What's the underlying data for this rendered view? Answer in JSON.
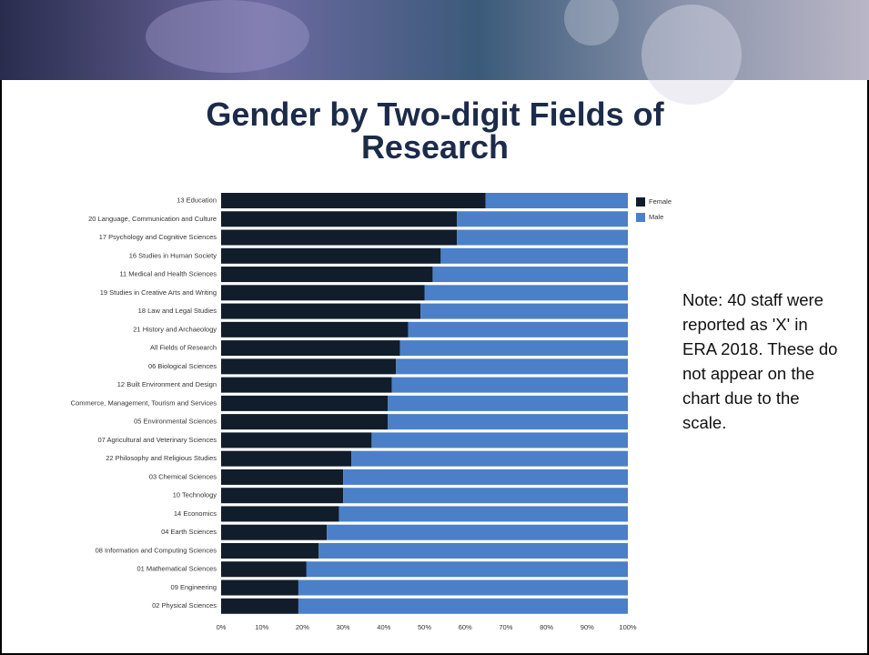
{
  "chart_data": {
    "type": "bar",
    "orientation": "horizontal",
    "stacked": true,
    "title": "Gender by Two-digit Fields of Research",
    "annotation": "Note: 40 staff were reported as 'X' in ERA 2018. These do not appear on the chart due to the scale.",
    "categories": [
      "13 Education",
      "20 Language, Communication and Culture",
      "17 Psychology and Cognitive Sciences",
      "16 Studies in Human Society",
      "11 Medical and Health Sciences",
      "19 Studies in Creative Arts and Writing",
      "18 Law and Legal Studies",
      "21 History and Archaeology",
      "All Fields of Research",
      "06 Biological Sciences",
      "12 Built Environment and Design",
      "Commerce, Management, Tourism and Services",
      "05 Environmental Sciences",
      "07 Agricultural and Veterinary Sciences",
      "22 Philosophy and Religious Studies",
      "03 Chemical Sciences",
      "10 Technology",
      "14 Economics",
      "04 Earth Sciences",
      "08 Information and Computing Sciences",
      "01 Mathematical Sciences",
      "09 Engineering",
      "02 Physical Sciences"
    ],
    "series": [
      {
        "name": "Female",
        "color": "#111d2b",
        "values": [
          65,
          58,
          58,
          54,
          52,
          50,
          49,
          46,
          44,
          43,
          42,
          41,
          41,
          37,
          32,
          30,
          30,
          29,
          26,
          24,
          21,
          19,
          19
        ]
      },
      {
        "name": "Male",
        "color": "#4b80c8",
        "values": [
          35,
          42,
          42,
          46,
          48,
          50,
          51,
          54,
          56,
          57,
          58,
          59,
          59,
          63,
          68,
          70,
          70,
          71,
          74,
          76,
          79,
          81,
          81
        ]
      }
    ],
    "xlim": [
      0,
      100
    ],
    "xticks": [
      {
        "value": 0,
        "label": "0%"
      },
      {
        "value": 10,
        "label": "10%"
      },
      {
        "value": 20,
        "label": "20%"
      },
      {
        "value": 30,
        "label": "30%"
      },
      {
        "value": 40,
        "label": "40%"
      },
      {
        "value": 50,
        "label": "50%"
      },
      {
        "value": 60,
        "label": "60%"
      },
      {
        "value": 70,
        "label": "70%"
      },
      {
        "value": 80,
        "label": "80%"
      },
      {
        "value": 90,
        "label": "90%"
      },
      {
        "value": 100,
        "label": "100%"
      }
    ],
    "legend": "top-right"
  }
}
